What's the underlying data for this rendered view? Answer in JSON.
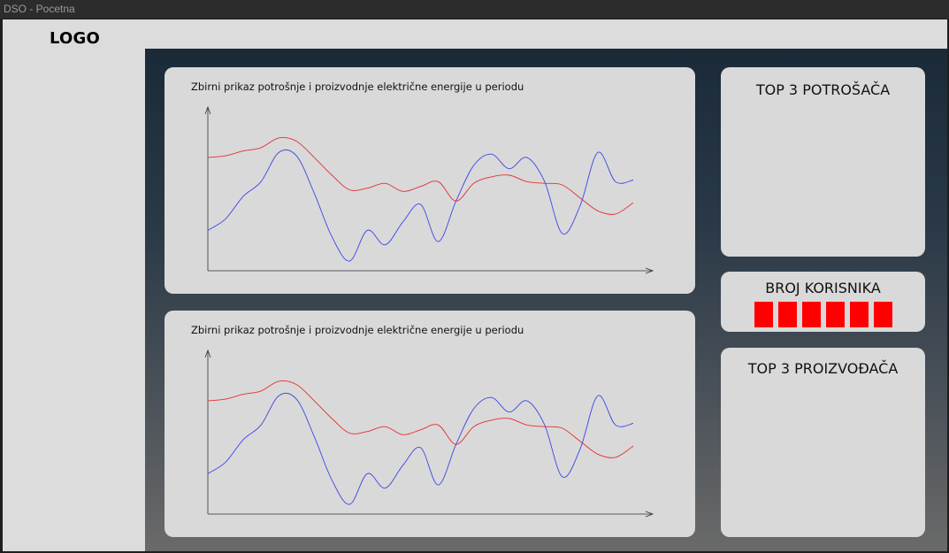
{
  "window": {
    "title": "DSO - Pocetna"
  },
  "header": {
    "logo": "LOGO"
  },
  "charts": [
    {
      "title": "Zbirni prikaz potrošnje i proizvodnje električne energije u periodu"
    },
    {
      "title": "Zbirni prikaz potrošnje i proizvodnje električne energije u periodu"
    }
  ],
  "chart_data": [
    {
      "type": "line",
      "title": "Zbirni prikaz potrošnje i proizvodnje električne energije u periodu",
      "xlabel": "",
      "ylabel": "",
      "grid": false,
      "x": [
        0,
        0.5,
        1,
        1.5,
        2,
        2.5,
        3,
        3.5,
        4,
        4.5,
        5,
        5.5,
        6,
        6.5,
        7,
        7.5,
        8,
        8.5,
        9,
        9.5,
        10,
        10.5,
        11,
        11.5,
        12
      ],
      "xlim": [
        0,
        12.5
      ],
      "ylim": [
        0,
        10
      ],
      "series": [
        {
          "color": "#e53030",
          "values": [
            7.0,
            7.1,
            7.4,
            7.6,
            8.2,
            8.0,
            7.0,
            5.9,
            5.0,
            5.1,
            5.4,
            4.9,
            5.2,
            5.5,
            4.3,
            5.4,
            5.8,
            5.9,
            5.5,
            5.4,
            5.3,
            4.5,
            3.7,
            3.5,
            4.2
          ]
        },
        {
          "color": "#3b46e6",
          "values": [
            2.5,
            3.2,
            4.6,
            5.5,
            7.3,
            7.1,
            4.8,
            2.1,
            0.6,
            2.5,
            1.6,
            3.0,
            4.1,
            1.8,
            4.3,
            6.5,
            7.2,
            6.3,
            7.0,
            5.5,
            2.3,
            4.0,
            7.3,
            5.5,
            5.6
          ]
        }
      ]
    },
    {
      "type": "line",
      "title": "Zbirni prikaz potrošnje i proizvodnje električne energije u periodu",
      "xlabel": "",
      "ylabel": "",
      "grid": false,
      "x": [
        0,
        0.5,
        1,
        1.5,
        2,
        2.5,
        3,
        3.5,
        4,
        4.5,
        5,
        5.5,
        6,
        6.5,
        7,
        7.5,
        8,
        8.5,
        9,
        9.5,
        10,
        10.5,
        11,
        11.5,
        12
      ],
      "xlim": [
        0,
        12.5
      ],
      "ylim": [
        0,
        10
      ],
      "series": [
        {
          "color": "#e53030",
          "values": [
            7.0,
            7.1,
            7.4,
            7.6,
            8.2,
            8.0,
            7.0,
            5.9,
            5.0,
            5.1,
            5.4,
            4.9,
            5.2,
            5.5,
            4.3,
            5.4,
            5.8,
            5.9,
            5.5,
            5.4,
            5.3,
            4.5,
            3.7,
            3.5,
            4.2
          ]
        },
        {
          "color": "#3b46e6",
          "values": [
            2.5,
            3.2,
            4.6,
            5.5,
            7.3,
            7.1,
            4.8,
            2.1,
            0.6,
            2.5,
            1.6,
            3.0,
            4.1,
            1.8,
            4.3,
            6.5,
            7.2,
            6.3,
            7.0,
            5.5,
            2.3,
            4.0,
            7.3,
            5.5,
            5.6
          ]
        }
      ]
    }
  ],
  "sidebar_right": {
    "top_consumers_title": "TOP 3 POTROŠAČA",
    "users_title": "BROJ KORISNIKA",
    "top_producers_title": "TOP 3 PROIZVOĐAČA",
    "counter_color": "#ff0000",
    "counter_digits": 6
  }
}
